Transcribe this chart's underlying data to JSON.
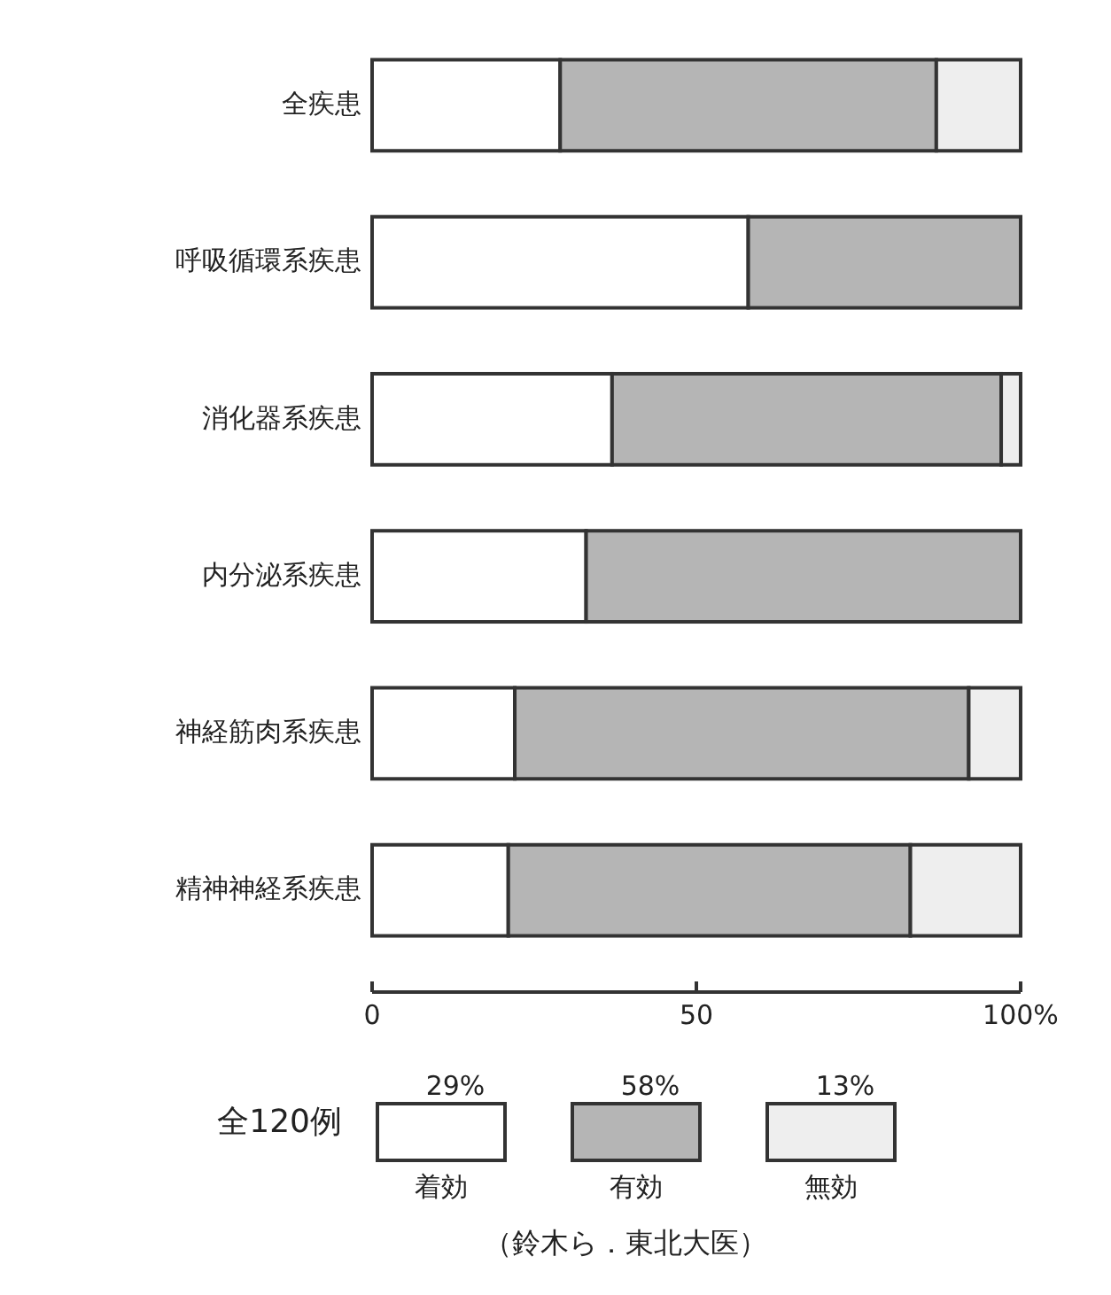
{
  "chart_data": {
    "type": "bar",
    "orientation": "horizontal",
    "stacked": true,
    "categories": [
      "全疾患",
      "呼吸循環系疾患",
      "消化器系疾患",
      "内分泌系疾患",
      "神経筋肉系疾患",
      "精神神経系疾患"
    ],
    "series": [
      {
        "name": "着効",
        "color": "#ffffff",
        "values": [
          29,
          58,
          37,
          33,
          22,
          21
        ]
      },
      {
        "name": "有効",
        "color": "#b5b5b5",
        "values": [
          58,
          42,
          60,
          67,
          70,
          62
        ]
      },
      {
        "name": "無効",
        "color": "#eeeeee",
        "values": [
          13,
          0,
          3,
          0,
          8,
          17
        ]
      }
    ],
    "xlim": [
      0,
      100
    ],
    "xticks": [
      0,
      50,
      {
        "value": 100,
        "label": "100%"
      }
    ],
    "legend": "bottom",
    "legend_title": "全120例",
    "grid": false,
    "annotations": [
      "29%",
      "58%",
      "13%",
      "（鈴木ら．東北大医）"
    ]
  }
}
